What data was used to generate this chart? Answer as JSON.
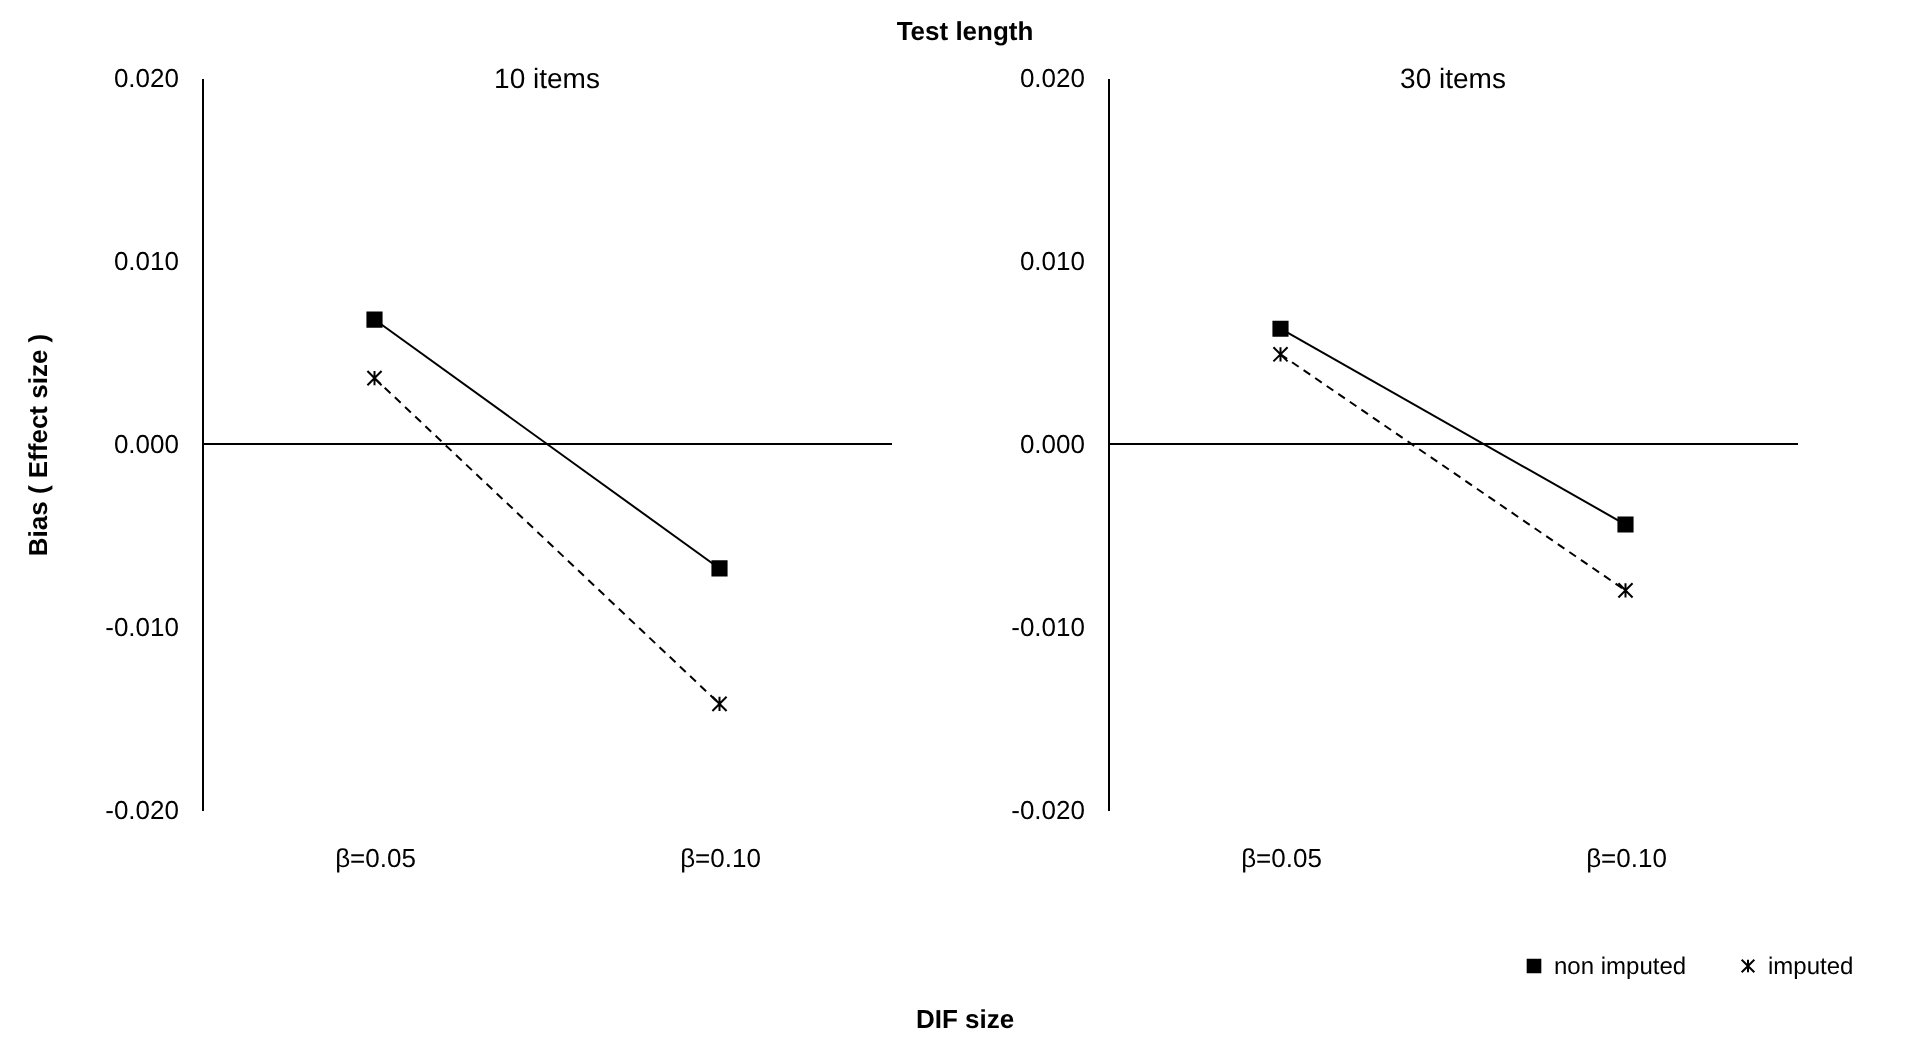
{
  "chart_data": [
    {
      "type": "line",
      "title": "10 items",
      "annotations": [
        "Test length"
      ],
      "xlabel": "DIF size",
      "ylabel": "Bias ( Effect size )",
      "categories": [
        "β=0.05",
        "β=0.10"
      ],
      "series": [
        {
          "color": "#000000",
          "marker": "square",
          "line_style": "solid",
          "values": [
            0.0068,
            -0.0068
          ]
        },
        {
          "color": "#000000",
          "marker": "cross",
          "line_style": "dashed",
          "values": [
            0.0036,
            -0.0142
          ]
        }
      ],
      "ylim": [
        -0.02,
        0.02
      ],
      "yticks": [
        {
          "value": -0.02,
          "label": "-0.020"
        },
        {
          "value": -0.01,
          "label": "-0.010"
        },
        {
          "value": 0,
          "label": "0.000"
        },
        {
          "value": 0.01,
          "label": "0.010"
        },
        {
          "value": 0.02,
          "label": "0.020"
        }
      ],
      "ref_lines": [
        {
          "axis": "y",
          "value": 0
        }
      ],
      "grid": false,
      "legend": false
    },
    {
      "type": "line",
      "title": "30 items",
      "categories": [
        "β=0.05",
        "β=0.10"
      ],
      "series": [
        {
          "name": "non imputed",
          "color": "#000000",
          "marker": "square",
          "line_style": "solid",
          "values": [
            0.0063,
            -0.0044
          ]
        },
        {
          "name": "imputed",
          "color": "#000000",
          "marker": "cross",
          "line_style": "dashed",
          "values": [
            0.0049,
            -0.008
          ]
        }
      ],
      "ylim": [
        -0.02,
        0.02
      ],
      "yticks": [
        {
          "value": -0.02,
          "label": "-0.020"
        },
        {
          "value": -0.01,
          "label": "-0.010"
        },
        {
          "value": 0,
          "label": "0.000"
        },
        {
          "value": 0.01,
          "label": "0.010"
        },
        {
          "value": 0.02,
          "label": "0.020"
        }
      ],
      "ref_lines": [
        {
          "axis": "y",
          "value": 0
        }
      ],
      "grid": false,
      "legend": "bottom right"
    }
  ]
}
